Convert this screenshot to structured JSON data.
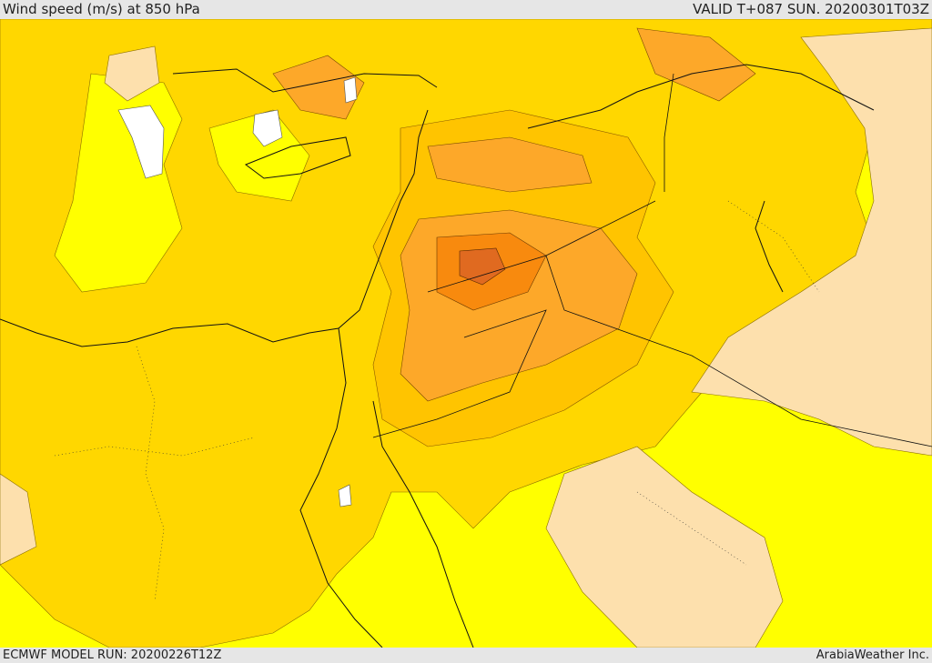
{
  "header": {
    "title": "Wind speed (m/s) at 850 hPa",
    "valid": "VALID T+087 SUN. 20200301T03Z"
  },
  "footer": {
    "model_run": "ECMWF MODEL RUN: 20200226T12Z",
    "credit": "ArabiaWeather Inc."
  },
  "colors": {
    "calm": "#ffffff",
    "light": "#ffff00",
    "moderate": "#ffd700",
    "fresh": "#ffc400",
    "strong": "#fda829",
    "very_strong": "#f88a0e",
    "weak_tan": "#fde0ad",
    "peak": "#e06a20"
  }
}
